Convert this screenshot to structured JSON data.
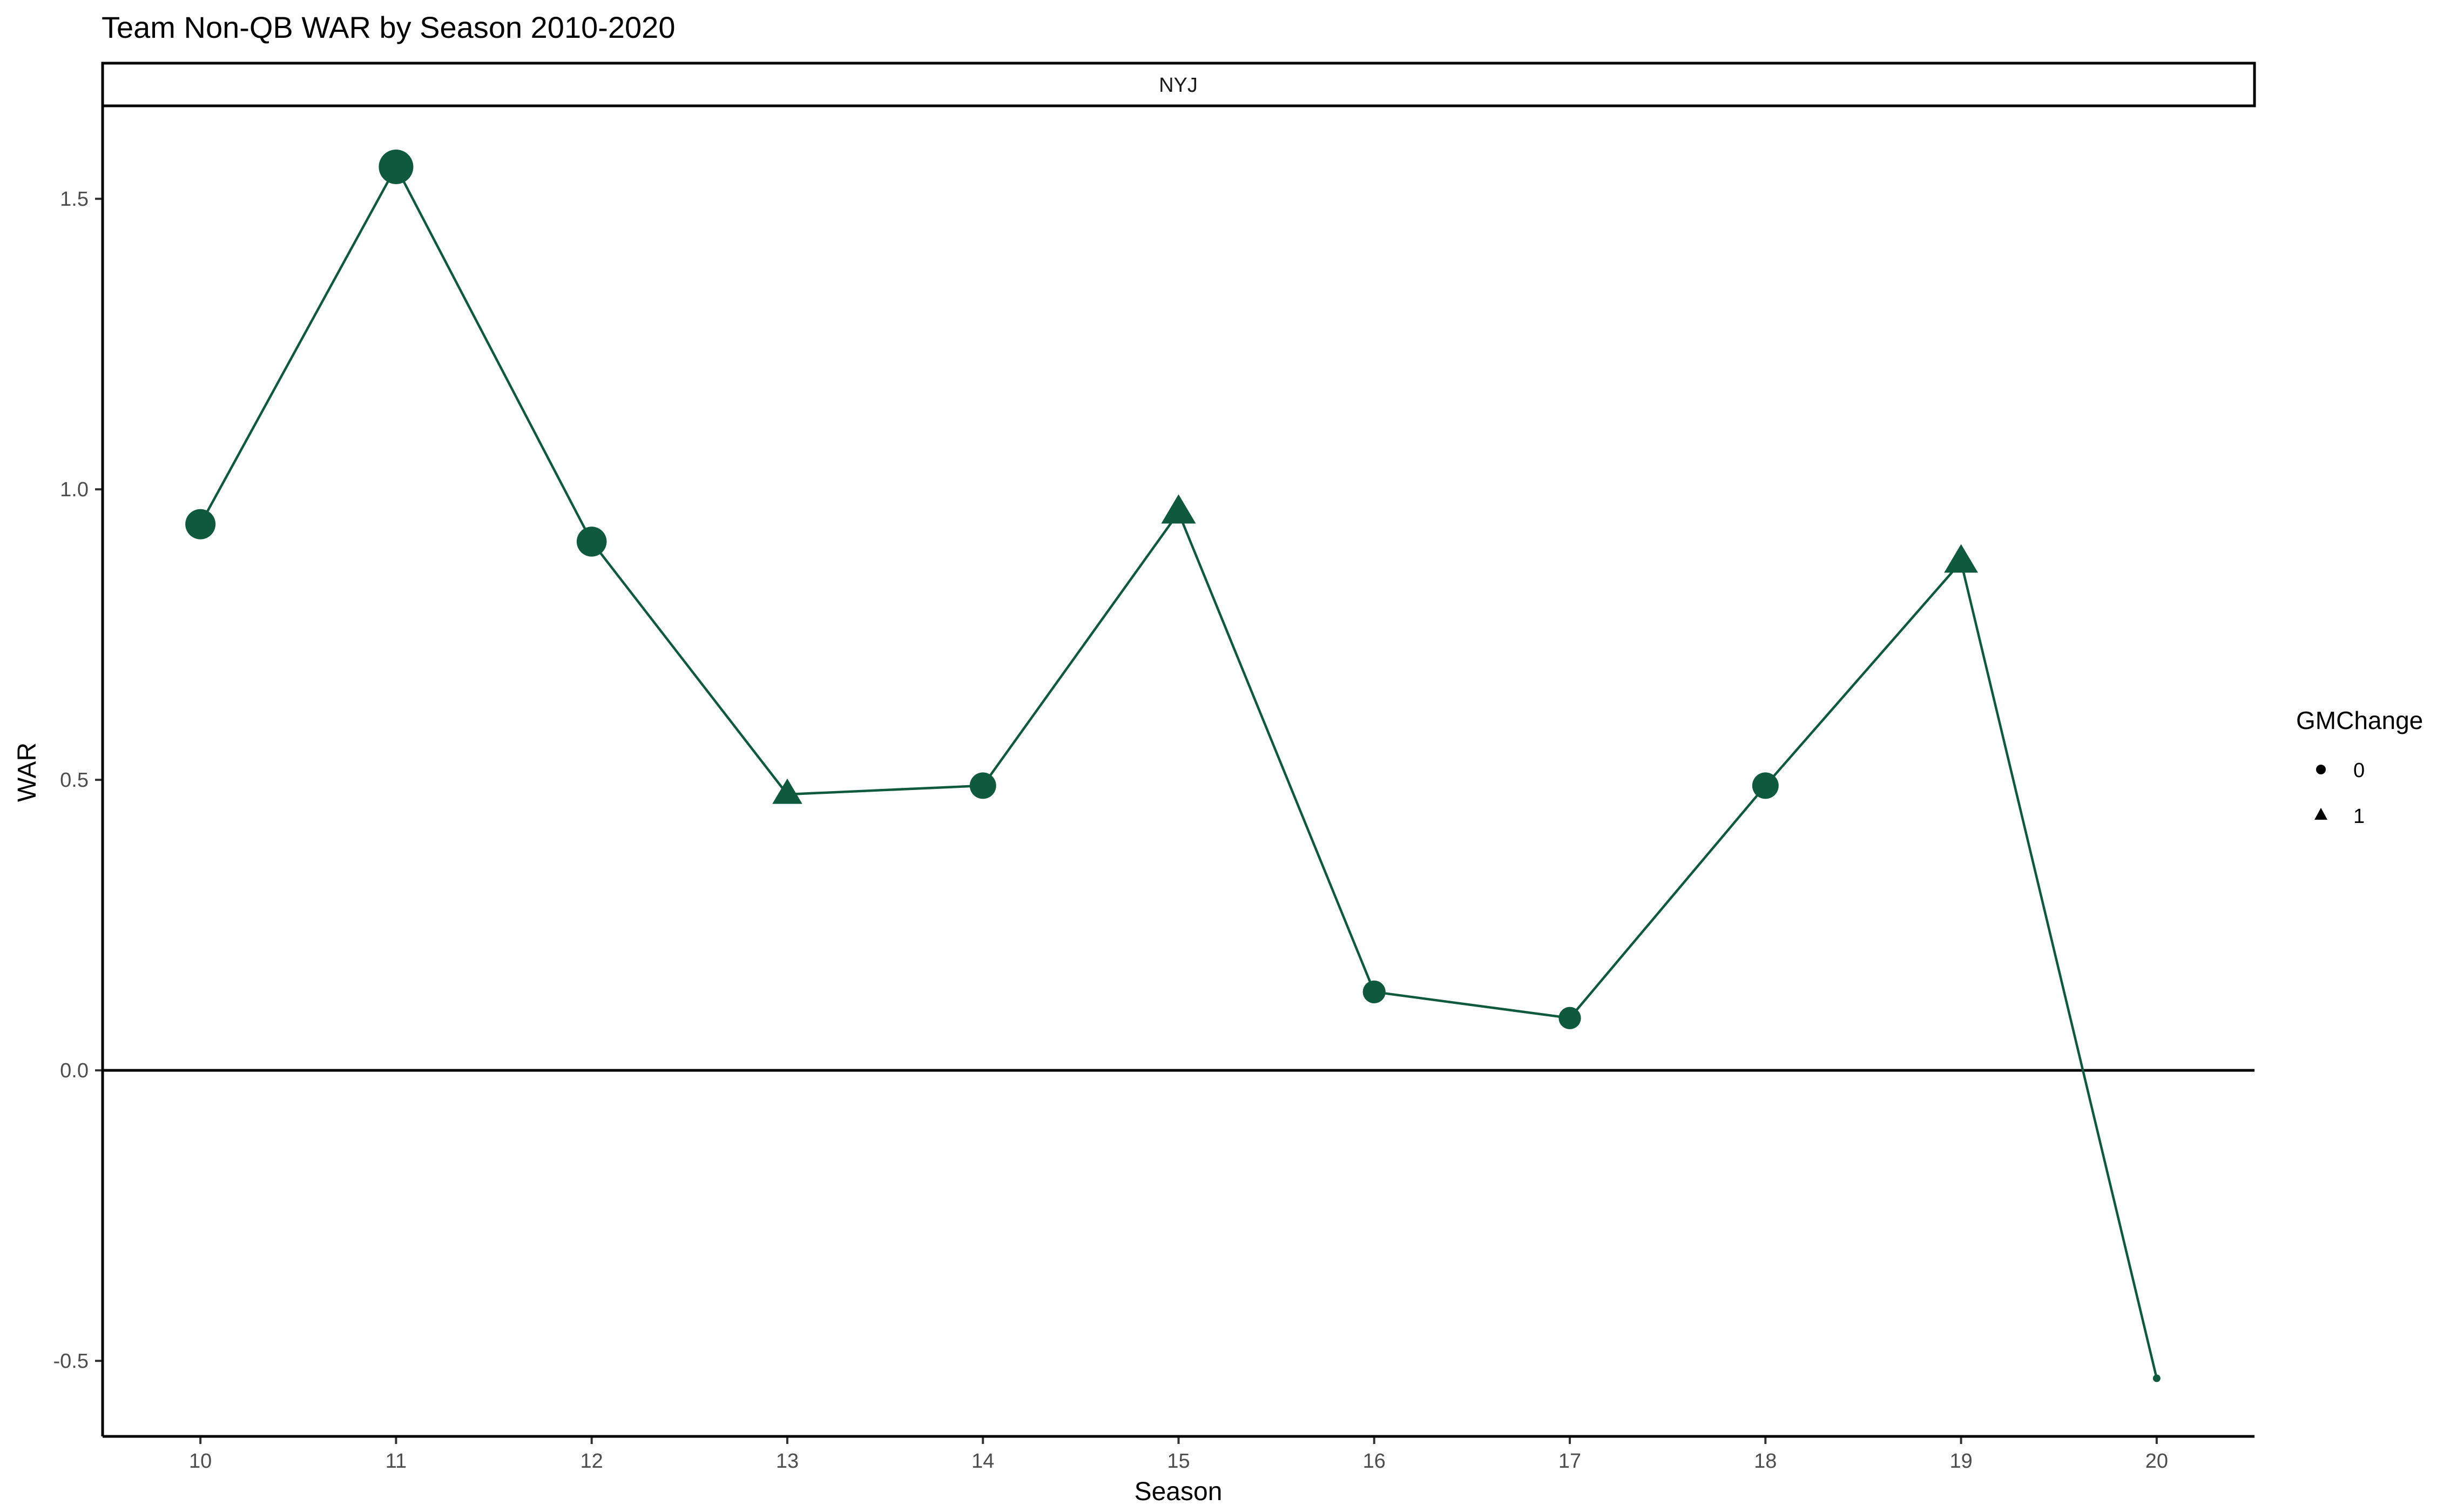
{
  "chart_data": {
    "type": "line",
    "title": "Team Non-QB WAR by Season 2010-2020",
    "facet_label": "NYJ",
    "xlabel": "Season",
    "ylabel": "WAR",
    "x": [
      10,
      11,
      12,
      13,
      14,
      15,
      16,
      17,
      18,
      19,
      20
    ],
    "y": [
      0.94,
      1.555,
      0.91,
      0.475,
      0.49,
      0.96,
      0.135,
      0.09,
      0.49,
      0.875,
      -0.53
    ],
    "gm_change": [
      0,
      0,
      0,
      1,
      0,
      1,
      0,
      0,
      0,
      1,
      0
    ],
    "xlim": [
      9.5,
      20.5
    ],
    "ylim": [
      -0.63,
      1.66
    ],
    "y_ticks": [
      -0.5,
      0.0,
      0.5,
      1.0,
      1.5
    ],
    "y_tick_labels": [
      "-0.5",
      "0.0",
      "0.5",
      "1.0",
      "1.5"
    ],
    "x_ticks": [
      10,
      11,
      12,
      13,
      14,
      15,
      16,
      17,
      18,
      19,
      20
    ],
    "x_tick_labels": [
      "10",
      "11",
      "12",
      "13",
      "14",
      "15",
      "16",
      "17",
      "18",
      "19",
      "20"
    ],
    "reference_line_y": 0,
    "grid": false,
    "legend": {
      "title": "GMChange",
      "placement": "right",
      "entries": [
        {
          "label": "0",
          "shape": "circle"
        },
        {
          "label": "1",
          "shape": "triangle"
        }
      ]
    },
    "color": "#0f5a3f"
  }
}
